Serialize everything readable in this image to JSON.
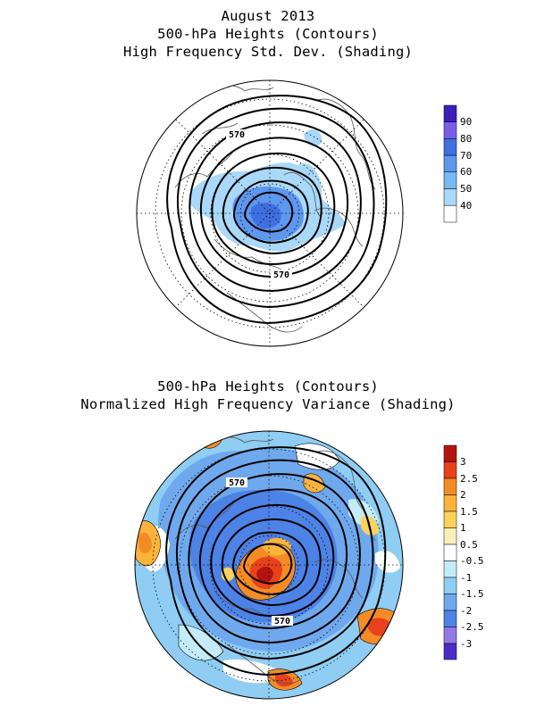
{
  "top_panel": {
    "title_lines": [
      "August 2013",
      "500-hPa Heights (Contours)",
      "High Frequency Std. Dev. (Shading)"
    ],
    "contour_labels": [
      "570",
      "570"
    ],
    "colorbar": {
      "ticks": [
        "90",
        "80",
        "70",
        "60",
        "50",
        "40"
      ],
      "colors": [
        "#3a1fb8",
        "#7a5de6",
        "#3f6fe0",
        "#5d97ee",
        "#a9d8f8",
        "#ffffff"
      ]
    }
  },
  "bottom_panel": {
    "title_lines": [
      "500-hPa Heights (Contours)",
      "Normalized High Frequency Variance (Shading)"
    ],
    "contour_labels": [
      "570",
      "570"
    ],
    "colorbar": {
      "ticks": [
        "3",
        "2.5",
        "2",
        "1.5",
        "1",
        "0.5",
        "-0.5",
        "-1",
        "-1.5",
        "-2",
        "-2.5",
        "-3"
      ],
      "colors": [
        "#b4140f",
        "#e8421c",
        "#f48c26",
        "#fbb33b",
        "#fbd25a",
        "#f9f0b8",
        "#ffffff",
        "#c3ecf8",
        "#8fcdf3",
        "#6fa9ed",
        "#4d82e6",
        "#9478e8",
        "#4b2cc6"
      ]
    }
  }
}
